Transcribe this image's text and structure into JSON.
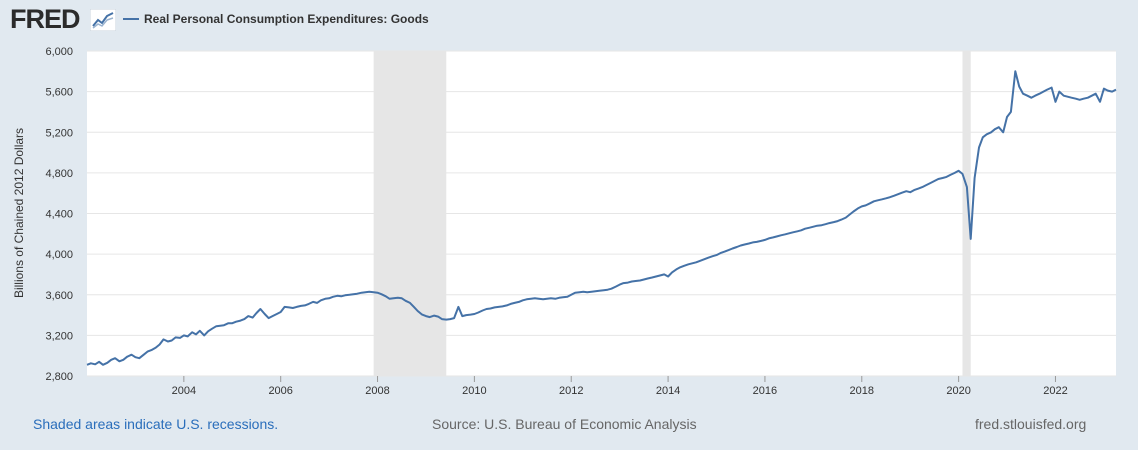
{
  "header": {
    "logo_text": "FRED",
    "logo_icon": "fred-graph-icon",
    "legend_label": "Real Personal Consumption Expenditures: Goods"
  },
  "colors": {
    "background": "#e1e9f0",
    "plot_background": "#ffffff",
    "series": "#4572a7",
    "recession": "#e6e6e6",
    "grid": "#e6e6e6"
  },
  "footer": {
    "recession_note": "Shaded areas indicate U.S. recessions.",
    "source": "Source: U.S. Bureau of Economic Analysis",
    "site": "fred.stlouisfed.org"
  },
  "chart_data": {
    "type": "line",
    "ylabel": "Billions of Chained 2012 Dollars",
    "xlim": [
      2002.0,
      2023.25
    ],
    "ylim": [
      2800,
      6000
    ],
    "x_ticks": [
      2004,
      2006,
      2008,
      2010,
      2012,
      2014,
      2016,
      2018,
      2020,
      2022
    ],
    "y_ticks": [
      2800,
      3200,
      3600,
      4000,
      4400,
      4800,
      5200,
      5600,
      6000
    ],
    "y_tick_labels": [
      "2,800",
      "3,200",
      "3,600",
      "4,000",
      "4,400",
      "4,800",
      "5,200",
      "5,600",
      "6,000"
    ],
    "grid": "horizontal",
    "recessions": [
      [
        2007.92,
        2009.42
      ],
      [
        2020.08,
        2020.25
      ]
    ],
    "series": [
      {
        "name": "Real Personal Consumption Expenditures: Goods",
        "points": [
          [
            2002.0,
            2910
          ],
          [
            2002.08,
            2925
          ],
          [
            2002.17,
            2915
          ],
          [
            2002.25,
            2940
          ],
          [
            2002.33,
            2910
          ],
          [
            2002.42,
            2930
          ],
          [
            2002.5,
            2960
          ],
          [
            2002.58,
            2975
          ],
          [
            2002.67,
            2945
          ],
          [
            2002.75,
            2960
          ],
          [
            2002.83,
            2990
          ],
          [
            2002.92,
            3010
          ],
          [
            2003.0,
            2985
          ],
          [
            2003.08,
            2975
          ],
          [
            2003.17,
            3010
          ],
          [
            2003.25,
            3040
          ],
          [
            2003.33,
            3055
          ],
          [
            2003.42,
            3080
          ],
          [
            2003.5,
            3110
          ],
          [
            2003.58,
            3160
          ],
          [
            2003.67,
            3140
          ],
          [
            2003.75,
            3150
          ],
          [
            2003.83,
            3180
          ],
          [
            2003.92,
            3175
          ],
          [
            2004.0,
            3200
          ],
          [
            2004.08,
            3190
          ],
          [
            2004.17,
            3230
          ],
          [
            2004.25,
            3210
          ],
          [
            2004.33,
            3245
          ],
          [
            2004.42,
            3200
          ],
          [
            2004.5,
            3240
          ],
          [
            2004.58,
            3265
          ],
          [
            2004.67,
            3290
          ],
          [
            2004.75,
            3295
          ],
          [
            2004.83,
            3300
          ],
          [
            2004.92,
            3320
          ],
          [
            2005.0,
            3320
          ],
          [
            2005.08,
            3335
          ],
          [
            2005.17,
            3345
          ],
          [
            2005.25,
            3360
          ],
          [
            2005.33,
            3390
          ],
          [
            2005.42,
            3375
          ],
          [
            2005.5,
            3420
          ],
          [
            2005.58,
            3460
          ],
          [
            2005.67,
            3410
          ],
          [
            2005.75,
            3370
          ],
          [
            2005.83,
            3390
          ],
          [
            2005.92,
            3410
          ],
          [
            2006.0,
            3430
          ],
          [
            2006.08,
            3480
          ],
          [
            2006.17,
            3475
          ],
          [
            2006.25,
            3470
          ],
          [
            2006.33,
            3480
          ],
          [
            2006.42,
            3490
          ],
          [
            2006.5,
            3495
          ],
          [
            2006.58,
            3510
          ],
          [
            2006.67,
            3530
          ],
          [
            2006.75,
            3520
          ],
          [
            2006.83,
            3545
          ],
          [
            2006.92,
            3560
          ],
          [
            2007.0,
            3565
          ],
          [
            2007.08,
            3580
          ],
          [
            2007.17,
            3590
          ],
          [
            2007.25,
            3585
          ],
          [
            2007.33,
            3595
          ],
          [
            2007.42,
            3600
          ],
          [
            2007.5,
            3605
          ],
          [
            2007.58,
            3610
          ],
          [
            2007.67,
            3620
          ],
          [
            2007.75,
            3625
          ],
          [
            2007.83,
            3630
          ],
          [
            2007.92,
            3625
          ],
          [
            2008.0,
            3620
          ],
          [
            2008.08,
            3605
          ],
          [
            2008.17,
            3585
          ],
          [
            2008.25,
            3560
          ],
          [
            2008.33,
            3565
          ],
          [
            2008.42,
            3570
          ],
          [
            2008.5,
            3565
          ],
          [
            2008.58,
            3540
          ],
          [
            2008.67,
            3520
          ],
          [
            2008.75,
            3480
          ],
          [
            2008.83,
            3440
          ],
          [
            2008.92,
            3405
          ],
          [
            2009.0,
            3390
          ],
          [
            2009.08,
            3380
          ],
          [
            2009.17,
            3395
          ],
          [
            2009.25,
            3385
          ],
          [
            2009.33,
            3360
          ],
          [
            2009.42,
            3355
          ],
          [
            2009.5,
            3360
          ],
          [
            2009.58,
            3370
          ],
          [
            2009.67,
            3480
          ],
          [
            2009.75,
            3390
          ],
          [
            2009.83,
            3400
          ],
          [
            2009.92,
            3405
          ],
          [
            2010.0,
            3410
          ],
          [
            2010.08,
            3425
          ],
          [
            2010.17,
            3445
          ],
          [
            2010.25,
            3460
          ],
          [
            2010.33,
            3465
          ],
          [
            2010.42,
            3475
          ],
          [
            2010.5,
            3480
          ],
          [
            2010.58,
            3485
          ],
          [
            2010.67,
            3495
          ],
          [
            2010.75,
            3510
          ],
          [
            2010.83,
            3520
          ],
          [
            2010.92,
            3530
          ],
          [
            2011.0,
            3545
          ],
          [
            2011.08,
            3555
          ],
          [
            2011.17,
            3560
          ],
          [
            2011.25,
            3565
          ],
          [
            2011.33,
            3560
          ],
          [
            2011.42,
            3555
          ],
          [
            2011.5,
            3560
          ],
          [
            2011.58,
            3565
          ],
          [
            2011.67,
            3560
          ],
          [
            2011.75,
            3570
          ],
          [
            2011.83,
            3575
          ],
          [
            2011.92,
            3580
          ],
          [
            2012.0,
            3600
          ],
          [
            2012.08,
            3620
          ],
          [
            2012.17,
            3625
          ],
          [
            2012.25,
            3630
          ],
          [
            2012.33,
            3625
          ],
          [
            2012.42,
            3630
          ],
          [
            2012.5,
            3635
          ],
          [
            2012.58,
            3640
          ],
          [
            2012.67,
            3645
          ],
          [
            2012.75,
            3650
          ],
          [
            2012.83,
            3660
          ],
          [
            2012.92,
            3680
          ],
          [
            2013.0,
            3700
          ],
          [
            2013.08,
            3715
          ],
          [
            2013.17,
            3720
          ],
          [
            2013.25,
            3730
          ],
          [
            2013.33,
            3735
          ],
          [
            2013.42,
            3740
          ],
          [
            2013.5,
            3750
          ],
          [
            2013.58,
            3760
          ],
          [
            2013.67,
            3770
          ],
          [
            2013.75,
            3780
          ],
          [
            2013.83,
            3790
          ],
          [
            2013.92,
            3800
          ],
          [
            2014.0,
            3780
          ],
          [
            2014.08,
            3820
          ],
          [
            2014.17,
            3850
          ],
          [
            2014.25,
            3870
          ],
          [
            2014.33,
            3885
          ],
          [
            2014.42,
            3900
          ],
          [
            2014.5,
            3910
          ],
          [
            2014.58,
            3920
          ],
          [
            2014.67,
            3935
          ],
          [
            2014.75,
            3950
          ],
          [
            2014.83,
            3965
          ],
          [
            2014.92,
            3980
          ],
          [
            2015.0,
            3990
          ],
          [
            2015.08,
            4010
          ],
          [
            2015.17,
            4025
          ],
          [
            2015.25,
            4040
          ],
          [
            2015.33,
            4055
          ],
          [
            2015.42,
            4070
          ],
          [
            2015.5,
            4085
          ],
          [
            2015.58,
            4095
          ],
          [
            2015.67,
            4105
          ],
          [
            2015.75,
            4115
          ],
          [
            2015.83,
            4120
          ],
          [
            2015.92,
            4130
          ],
          [
            2016.0,
            4140
          ],
          [
            2016.08,
            4155
          ],
          [
            2016.17,
            4165
          ],
          [
            2016.25,
            4175
          ],
          [
            2016.33,
            4185
          ],
          [
            2016.42,
            4195
          ],
          [
            2016.5,
            4205
          ],
          [
            2016.58,
            4215
          ],
          [
            2016.67,
            4225
          ],
          [
            2016.75,
            4235
          ],
          [
            2016.83,
            4250
          ],
          [
            2016.92,
            4260
          ],
          [
            2017.0,
            4270
          ],
          [
            2017.08,
            4280
          ],
          [
            2017.17,
            4285
          ],
          [
            2017.25,
            4295
          ],
          [
            2017.33,
            4305
          ],
          [
            2017.42,
            4315
          ],
          [
            2017.5,
            4325
          ],
          [
            2017.58,
            4340
          ],
          [
            2017.67,
            4360
          ],
          [
            2017.75,
            4390
          ],
          [
            2017.83,
            4420
          ],
          [
            2017.92,
            4450
          ],
          [
            2018.0,
            4470
          ],
          [
            2018.08,
            4480
          ],
          [
            2018.17,
            4500
          ],
          [
            2018.25,
            4520
          ],
          [
            2018.33,
            4530
          ],
          [
            2018.42,
            4540
          ],
          [
            2018.5,
            4550
          ],
          [
            2018.58,
            4560
          ],
          [
            2018.67,
            4575
          ],
          [
            2018.75,
            4590
          ],
          [
            2018.83,
            4605
          ],
          [
            2018.92,
            4620
          ],
          [
            2019.0,
            4610
          ],
          [
            2019.08,
            4630
          ],
          [
            2019.17,
            4645
          ],
          [
            2019.25,
            4660
          ],
          [
            2019.33,
            4680
          ],
          [
            2019.42,
            4700
          ],
          [
            2019.5,
            4720
          ],
          [
            2019.58,
            4740
          ],
          [
            2019.67,
            4750
          ],
          [
            2019.75,
            4760
          ],
          [
            2019.83,
            4780
          ],
          [
            2019.92,
            4800
          ],
          [
            2020.0,
            4820
          ],
          [
            2020.08,
            4790
          ],
          [
            2020.17,
            4660
          ],
          [
            2020.25,
            4150
          ],
          [
            2020.33,
            4750
          ],
          [
            2020.42,
            5050
          ],
          [
            2020.5,
            5150
          ],
          [
            2020.58,
            5180
          ],
          [
            2020.67,
            5200
          ],
          [
            2020.75,
            5230
          ],
          [
            2020.83,
            5250
          ],
          [
            2020.92,
            5200
          ],
          [
            2021.0,
            5350
          ],
          [
            2021.08,
            5400
          ],
          [
            2021.17,
            5800
          ],
          [
            2021.25,
            5650
          ],
          [
            2021.33,
            5580
          ],
          [
            2021.42,
            5560
          ],
          [
            2021.5,
            5540
          ],
          [
            2021.58,
            5560
          ],
          [
            2021.67,
            5580
          ],
          [
            2021.75,
            5600
          ],
          [
            2021.83,
            5620
          ],
          [
            2021.92,
            5640
          ],
          [
            2022.0,
            5500
          ],
          [
            2022.08,
            5600
          ],
          [
            2022.17,
            5560
          ],
          [
            2022.25,
            5550
          ],
          [
            2022.33,
            5540
          ],
          [
            2022.42,
            5530
          ],
          [
            2022.5,
            5520
          ],
          [
            2022.58,
            5530
          ],
          [
            2022.67,
            5540
          ],
          [
            2022.75,
            5560
          ],
          [
            2022.83,
            5580
          ],
          [
            2022.92,
            5500
          ],
          [
            2023.0,
            5630
          ],
          [
            2023.08,
            5610
          ],
          [
            2023.17,
            5600
          ],
          [
            2023.25,
            5620
          ]
        ]
      }
    ]
  }
}
